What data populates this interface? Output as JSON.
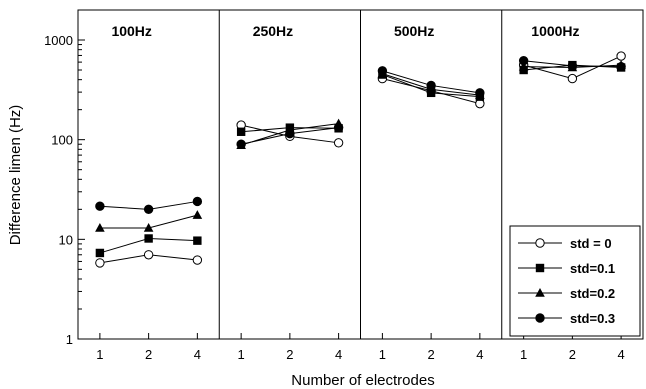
{
  "chart_data": {
    "type": "line",
    "title": "",
    "xlabel": "Number of electrodes",
    "ylabel": "Difference limen (Hz)",
    "y_scale": "log",
    "ylim": [
      1,
      2000
    ],
    "y_ticks": [
      1,
      10,
      100,
      1000
    ],
    "y_tick_labels": [
      "1",
      "10",
      "100",
      "1000"
    ],
    "x_categories": [
      "1",
      "2",
      "4"
    ],
    "grid": false,
    "legend_position": "bottom-right",
    "panels": [
      {
        "title": "100Hz",
        "series": [
          {
            "name": "std = 0",
            "values": [
              5.8,
              7.0,
              6.2
            ]
          },
          {
            "name": "std=0.1",
            "values": [
              7.3,
              10.2,
              9.7
            ]
          },
          {
            "name": "std=0.2",
            "values": [
              13.0,
              13.0,
              17.5
            ]
          },
          {
            "name": "std=0.3",
            "values": [
              21.5,
              20.0,
              24.0
            ]
          }
        ]
      },
      {
        "title": "250Hz",
        "series": [
          {
            "name": "std = 0",
            "values": [
              140,
              108,
              93
            ]
          },
          {
            "name": "std=0.1",
            "values": [
              120,
              132,
              130
            ]
          },
          {
            "name": "std=0.2",
            "values": [
              88,
              125,
              145
            ]
          },
          {
            "name": "std=0.3",
            "values": [
              90,
              115,
              132
            ]
          }
        ]
      },
      {
        "title": "500Hz",
        "series": [
          {
            "name": "std = 0",
            "values": [
              410,
              310,
              230
            ]
          },
          {
            "name": "std=0.1",
            "values": [
              450,
              295,
              270
            ]
          },
          {
            "name": "std=0.2",
            "values": [
              460,
              320,
              280
            ]
          },
          {
            "name": "std=0.3",
            "values": [
              490,
              350,
              295
            ]
          }
        ]
      },
      {
        "title": "1000Hz",
        "series": [
          {
            "name": "std = 0",
            "values": [
              560,
              410,
              690
            ]
          },
          {
            "name": "std=0.1",
            "values": [
              500,
              560,
              530
            ]
          },
          {
            "name": "std=0.2",
            "values": [
              540,
              530,
              560
            ]
          },
          {
            "name": "std=0.3",
            "values": [
              620,
              550,
              540
            ]
          }
        ]
      }
    ],
    "legend": [
      {
        "name": "std = 0",
        "marker": "circle-open"
      },
      {
        "name": "std=0.1",
        "marker": "square-filled"
      },
      {
        "name": "std=0.2",
        "marker": "triangle-filled"
      },
      {
        "name": "std=0.3",
        "marker": "circle-filled"
      }
    ]
  }
}
